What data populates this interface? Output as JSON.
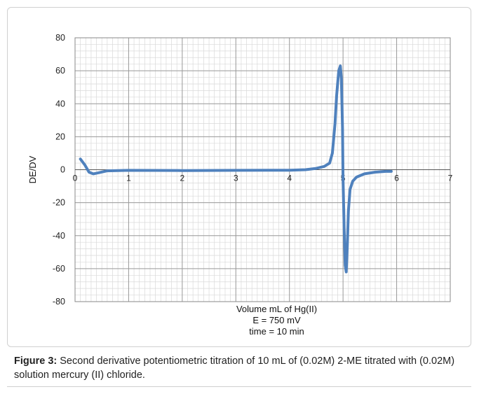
{
  "chart_data": {
    "type": "line",
    "title": "",
    "ylabel": "DE/DV",
    "xlabel_lines": [
      "Volume mL of Hg(II)",
      "E = 750 mV",
      "time = 10 min"
    ],
    "xlim": [
      0,
      7
    ],
    "ylim": [
      -80,
      80
    ],
    "x_ticks": [
      0,
      1,
      2,
      3,
      4,
      5,
      6,
      7
    ],
    "y_ticks": [
      80,
      60,
      40,
      20,
      0,
      -20,
      -40,
      -60,
      -80
    ],
    "grid": true,
    "legend": "none",
    "series": [
      {
        "color": "#4f81bd",
        "x": [
          0.1,
          0.18,
          0.26,
          0.34,
          0.45,
          0.6,
          1.0,
          2.0,
          3.0,
          4.0,
          4.3,
          4.5,
          4.65,
          4.75,
          4.8,
          4.85,
          4.88,
          4.92,
          4.95,
          4.97,
          4.99,
          5.0,
          5.02,
          5.04,
          5.06,
          5.08,
          5.1,
          5.13,
          5.18,
          5.25,
          5.4,
          5.6,
          5.8,
          5.9
        ],
        "y": [
          6.5,
          3.0,
          -1.5,
          -2.5,
          -1.8,
          -0.7,
          -0.4,
          -0.5,
          -0.4,
          -0.3,
          0.0,
          0.8,
          2.0,
          4.0,
          10.0,
          28.0,
          45.0,
          60.0,
          63.0,
          55.0,
          25.0,
          -5.0,
          -35.0,
          -58.0,
          -62.0,
          -45.0,
          -25.0,
          -12.0,
          -7.0,
          -4.5,
          -2.5,
          -1.5,
          -1.0,
          -1.0
        ]
      }
    ]
  },
  "caption": {
    "label": "Figure 3:",
    "text": " Second derivative potentiometric titration of 10 mL of (0.02M) 2-ME titrated with (0.02M) solution mercury (II) chloride."
  }
}
